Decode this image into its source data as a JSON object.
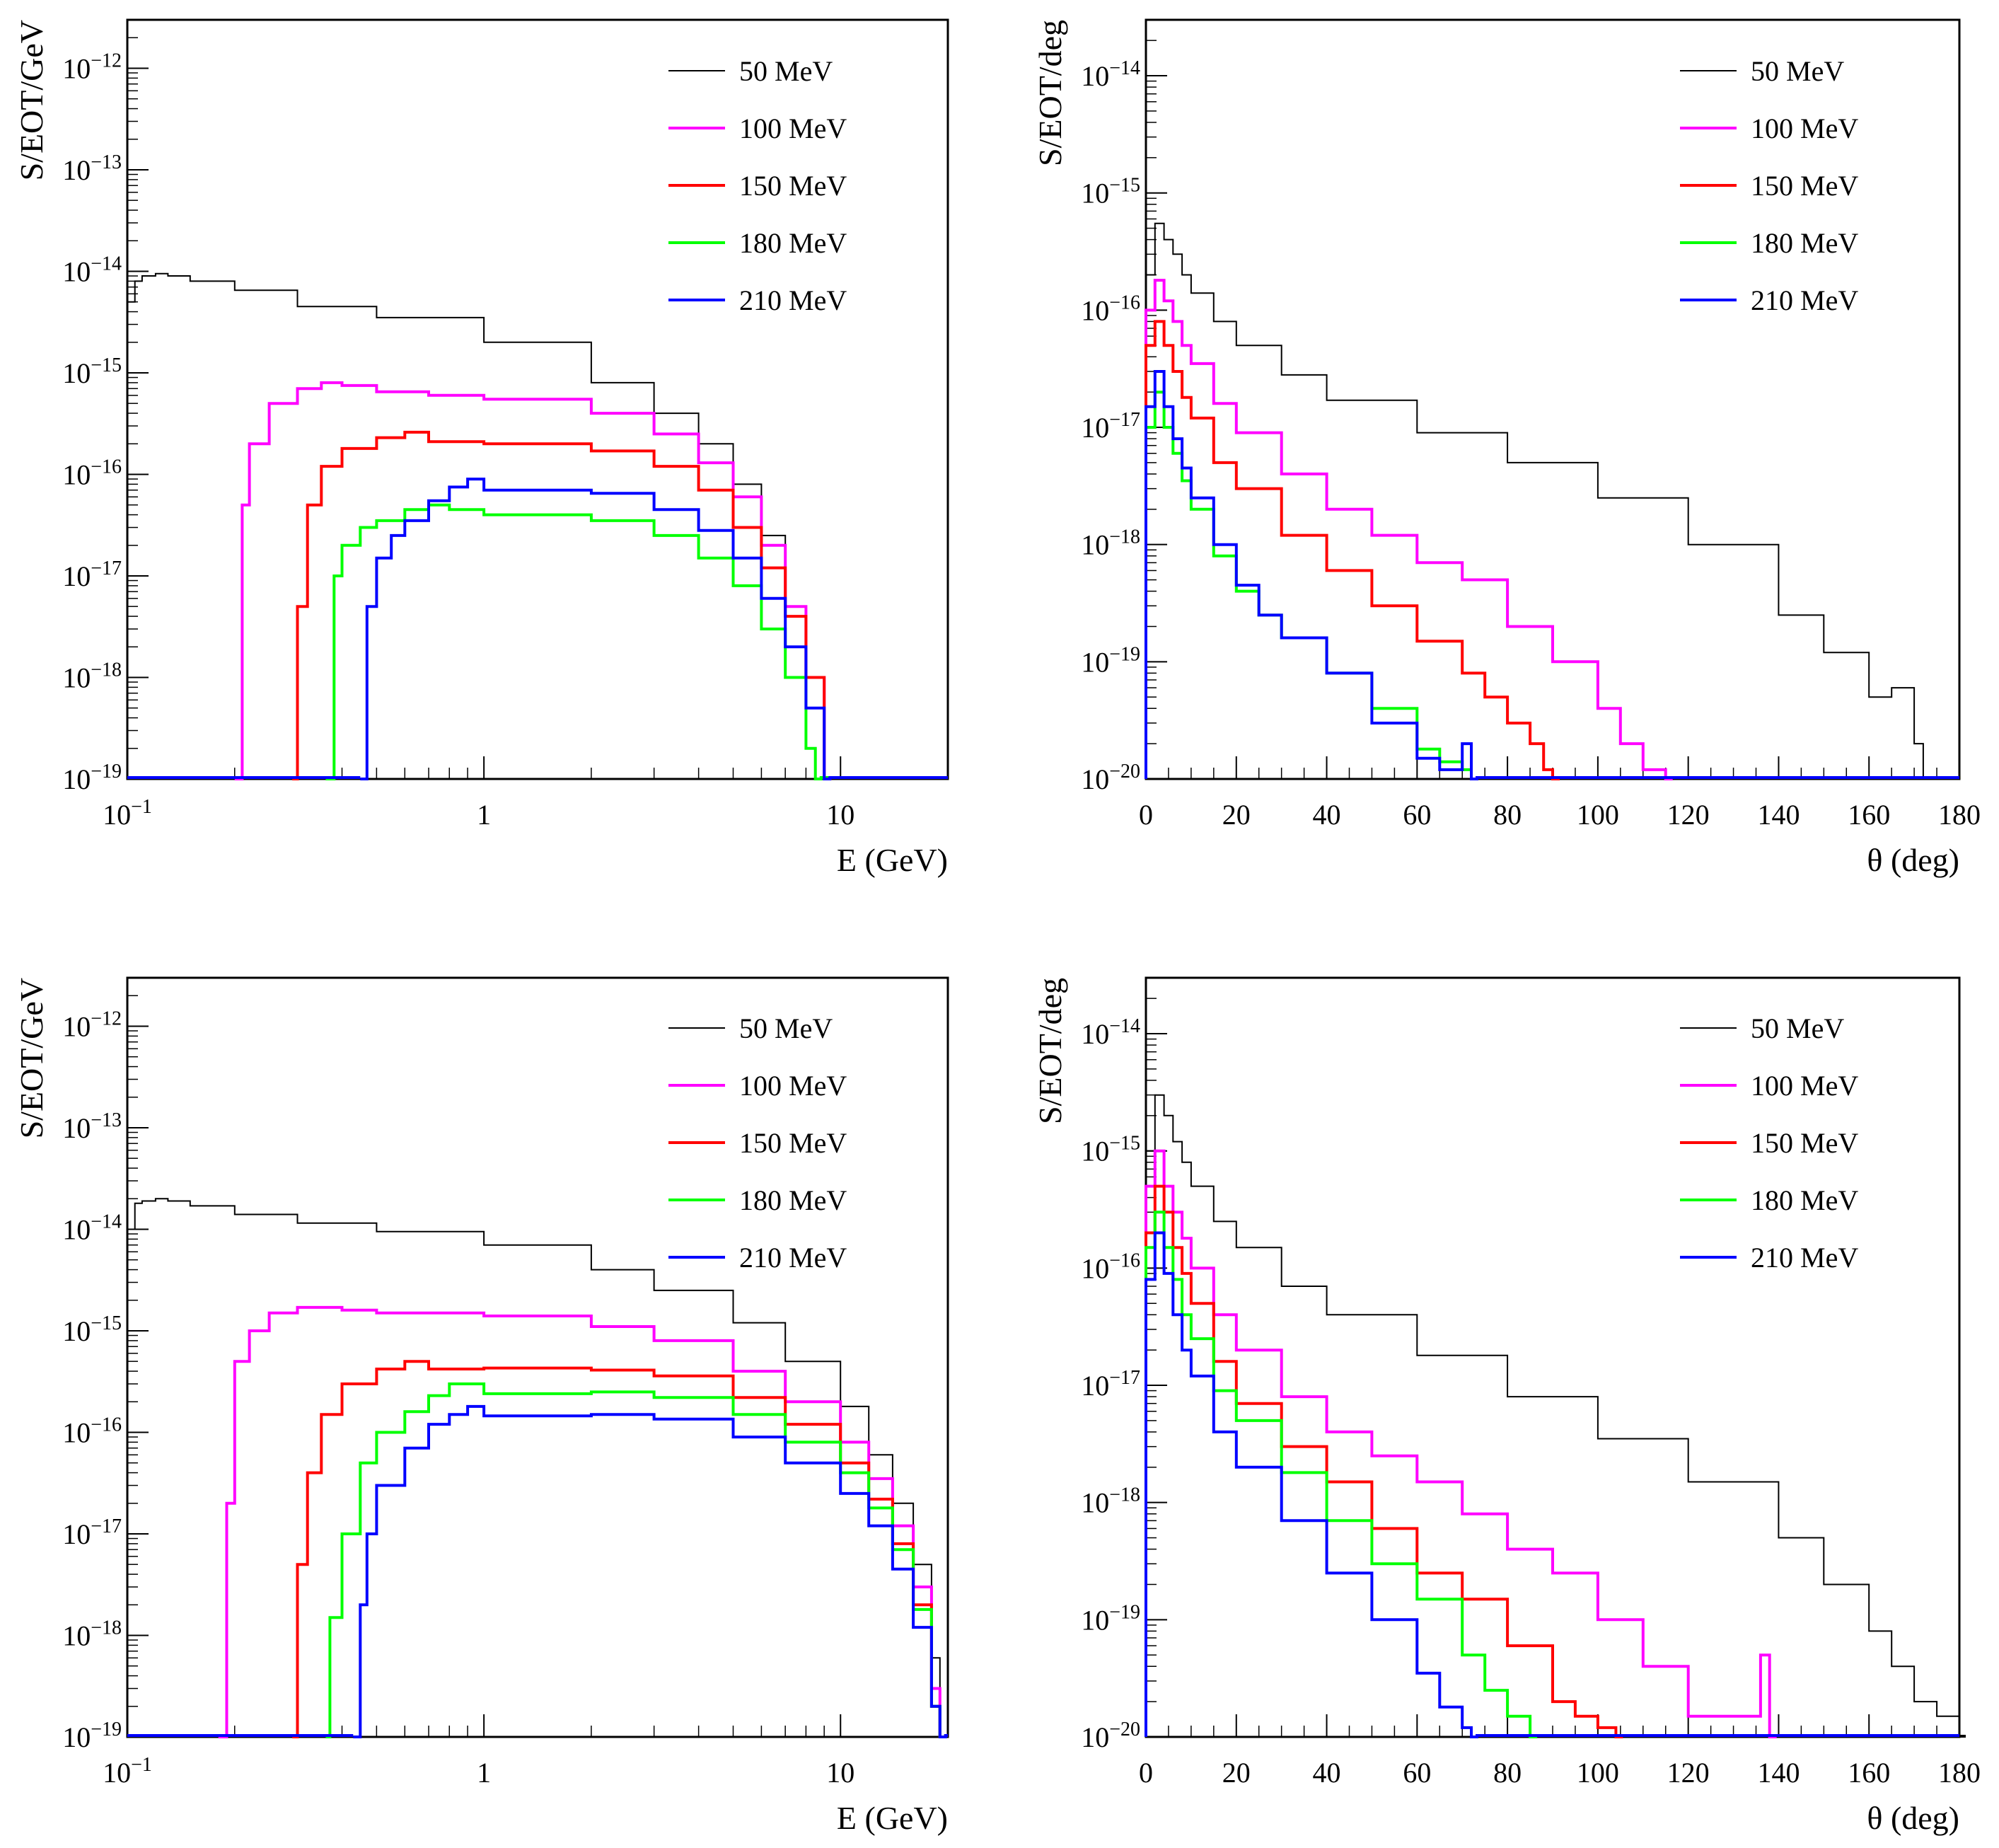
{
  "series_styles": [
    {
      "label": "50 MeV",
      "color": "#000000"
    },
    {
      "label": "100 MeV",
      "color": "#ff00ff"
    },
    {
      "label": "150 MeV",
      "color": "#ff0000"
    },
    {
      "label": "180 MeV",
      "color": "#00ff00"
    },
    {
      "label": "210 MeV",
      "color": "#0000ff"
    }
  ],
  "chart_data": [
    {
      "type": "line",
      "subtype": "step-histogram",
      "panel": "top-left",
      "title": "",
      "xlabel": "E (GeV)",
      "ylabel": "S/EOT/GeV",
      "xscale": "log",
      "yscale": "log",
      "xlim": [
        0.1,
        20
      ],
      "ylim": [
        1e-19,
        3e-12
      ],
      "x_ticks": [
        "10^-1",
        "1",
        "10"
      ],
      "y_ticks": [
        "10^-19",
        "10^-18",
        "10^-17",
        "10^-16",
        "10^-15",
        "10^-14",
        "10^-13",
        "10^-12"
      ],
      "legend_position": "top-right",
      "series": [
        {
          "name": "50 MeV",
          "x": [
            0.1,
            0.105,
            0.11,
            0.12,
            0.13,
            0.15,
            0.2,
            0.3,
            0.5,
            1,
            2,
            3,
            4,
            5,
            6,
            7,
            8,
            9
          ],
          "values": [
            5e-15,
            8e-15,
            9e-15,
            9.5e-15,
            9e-15,
            8e-15,
            6.5e-15,
            4.5e-15,
            3.5e-15,
            2e-15,
            8e-16,
            4e-16,
            2e-16,
            8e-17,
            2.5e-17,
            5e-18,
            1e-18,
            1e-19
          ]
        },
        {
          "name": "100 MeV",
          "x": [
            0.2,
            0.21,
            0.22,
            0.25,
            0.3,
            0.35,
            0.4,
            0.5,
            0.7,
            1,
            2,
            3,
            4,
            5,
            6,
            7,
            8,
            9
          ],
          "values": [
            1e-19,
            5e-17,
            2e-16,
            5e-16,
            7e-16,
            8e-16,
            7.5e-16,
            6.5e-16,
            6e-16,
            5.5e-16,
            4e-16,
            2.5e-16,
            1.3e-16,
            6e-17,
            2e-17,
            5e-18,
            1e-18,
            1e-19
          ]
        },
        {
          "name": "150 MeV",
          "x": [
            0.29,
            0.3,
            0.32,
            0.35,
            0.4,
            0.5,
            0.6,
            0.7,
            1,
            1.5,
            2,
            3,
            4,
            5,
            6,
            7,
            8,
            9
          ],
          "values": [
            1e-19,
            5e-18,
            5e-17,
            1.2e-16,
            1.8e-16,
            2.3e-16,
            2.6e-16,
            2.1e-16,
            2e-16,
            2e-16,
            1.7e-16,
            1.2e-16,
            7e-17,
            3e-17,
            1.2e-17,
            4e-18,
            1e-18,
            1e-19
          ]
        },
        {
          "name": "180 MeV",
          "x": [
            0.36,
            0.38,
            0.4,
            0.45,
            0.5,
            0.6,
            0.7,
            0.8,
            1,
            1.5,
            2,
            3,
            4,
            5,
            6,
            7,
            8,
            8.5
          ],
          "values": [
            1e-19,
            1e-17,
            2e-17,
            3e-17,
            3.5e-17,
            4.5e-17,
            5e-17,
            4.5e-17,
            4e-17,
            4e-17,
            3.5e-17,
            2.5e-17,
            1.5e-17,
            8e-18,
            3e-18,
            1e-18,
            2e-19,
            1e-19
          ]
        },
        {
          "name": "210 MeV",
          "x": [
            0.45,
            0.47,
            0.5,
            0.55,
            0.6,
            0.7,
            0.8,
            0.9,
            1,
            1.5,
            2,
            3,
            4,
            5,
            6,
            7,
            8,
            9
          ],
          "values": [
            1e-19,
            5e-18,
            1.5e-17,
            2.5e-17,
            3.5e-17,
            5.5e-17,
            7.5e-17,
            9e-17,
            7e-17,
            7e-17,
            6.5e-17,
            4.5e-17,
            2.8e-17,
            1.5e-17,
            6e-18,
            2e-18,
            5e-19,
            1e-19
          ]
        }
      ]
    },
    {
      "type": "line",
      "subtype": "step-histogram",
      "panel": "top-right",
      "title": "",
      "xlabel": "θ (deg)",
      "ylabel": "S/EOT/deg",
      "xscale": "linear",
      "yscale": "log",
      "xlim": [
        0,
        180
      ],
      "ylim": [
        1e-20,
        3e-14
      ],
      "x_ticks": [
        "0",
        "20",
        "40",
        "60",
        "80",
        "100",
        "120",
        "140",
        "160",
        "180"
      ],
      "y_ticks": [
        "10^-20",
        "10^-19",
        "10^-18",
        "10^-17",
        "10^-16",
        "10^-15",
        "10^-14"
      ],
      "legend_position": "top-right",
      "series": [
        {
          "name": "50 MeV",
          "x": [
            0,
            2,
            4,
            6,
            8,
            10,
            15,
            20,
            30,
            40,
            60,
            80,
            100,
            120,
            140,
            150,
            160,
            165,
            170,
            172
          ],
          "values": [
            2e-16,
            5.5e-16,
            4e-16,
            3e-16,
            2e-16,
            1.4e-16,
            8e-17,
            5e-17,
            2.8e-17,
            1.7e-17,
            9e-18,
            5e-18,
            2.5e-18,
            1e-18,
            2.5e-19,
            1.2e-19,
            5e-20,
            6e-20,
            2e-20,
            1e-20
          ]
        },
        {
          "name": "100 MeV",
          "x": [
            0,
            2,
            4,
            6,
            8,
            10,
            15,
            20,
            30,
            40,
            50,
            60,
            70,
            80,
            90,
            100,
            105,
            110,
            115
          ],
          "values": [
            1e-16,
            1.8e-16,
            1.2e-16,
            8e-17,
            5e-17,
            3.5e-17,
            1.6e-17,
            9e-18,
            4e-18,
            2e-18,
            1.2e-18,
            7e-19,
            5e-19,
            2e-19,
            1e-19,
            4e-20,
            2e-20,
            1.2e-20,
            1e-20
          ]
        },
        {
          "name": "150 MeV",
          "x": [
            0,
            2,
            4,
            6,
            8,
            10,
            15,
            20,
            30,
            40,
            50,
            60,
            70,
            75,
            80,
            85,
            88,
            90
          ],
          "values": [
            5e-17,
            8e-17,
            5e-17,
            3e-17,
            1.8e-17,
            1.2e-17,
            5e-18,
            3e-18,
            1.2e-18,
            6e-19,
            3e-19,
            1.5e-19,
            8e-20,
            5e-20,
            3e-20,
            2e-20,
            1.2e-20,
            1e-20
          ]
        },
        {
          "name": "180 MeV",
          "x": [
            0,
            2,
            4,
            6,
            8,
            10,
            15,
            20,
            25,
            30,
            40,
            50,
            60,
            65,
            70,
            72
          ],
          "values": [
            1e-17,
            2e-17,
            1e-17,
            6e-18,
            3.5e-18,
            2e-18,
            8e-19,
            4e-19,
            2.5e-19,
            1.6e-19,
            8e-20,
            4e-20,
            1.8e-20,
            1.4e-20,
            1.2e-20,
            1e-20
          ]
        },
        {
          "name": "210 MeV",
          "x": [
            0,
            2,
            4,
            6,
            8,
            10,
            15,
            20,
            25,
            30,
            40,
            50,
            60,
            65,
            70,
            72
          ],
          "values": [
            1.5e-17,
            3e-17,
            1.5e-17,
            8e-18,
            4.5e-18,
            2.5e-18,
            1e-18,
            4.5e-19,
            2.5e-19,
            1.6e-19,
            8e-20,
            3e-20,
            1.5e-20,
            1.2e-20,
            2e-20,
            1e-20
          ]
        }
      ]
    },
    {
      "type": "line",
      "subtype": "step-histogram",
      "panel": "bottom-left",
      "title": "",
      "xlabel": "E (GeV)",
      "ylabel": "S/EOT/GeV",
      "xscale": "log",
      "yscale": "log",
      "xlim": [
        0.1,
        20
      ],
      "ylim": [
        1e-19,
        3e-12
      ],
      "x_ticks": [
        "10^-1",
        "1",
        "10"
      ],
      "y_ticks": [
        "10^-19",
        "10^-18",
        "10^-17",
        "10^-16",
        "10^-15",
        "10^-14",
        "10^-13",
        "10^-12"
      ],
      "legend_position": "top-right",
      "series": [
        {
          "name": "50 MeV",
          "x": [
            0.1,
            0.105,
            0.11,
            0.12,
            0.13,
            0.15,
            0.2,
            0.3,
            0.5,
            1,
            2,
            3,
            5,
            7,
            10,
            12,
            14,
            16,
            18,
            19
          ],
          "values": [
            1e-14,
            1.8e-14,
            1.9e-14,
            2e-14,
            1.9e-14,
            1.7e-14,
            1.4e-14,
            1.15e-14,
            9.5e-15,
            7e-15,
            4e-15,
            2.5e-15,
            1.2e-15,
            5e-16,
            1.8e-16,
            6e-17,
            2e-17,
            5e-18,
            6e-19,
            1e-19
          ]
        },
        {
          "name": "100 MeV",
          "x": [
            0.18,
            0.19,
            0.2,
            0.22,
            0.25,
            0.3,
            0.4,
            0.5,
            1,
            2,
            3,
            5,
            7,
            10,
            12,
            14,
            16,
            18,
            19
          ],
          "values": [
            1e-19,
            2e-17,
            5e-16,
            1e-15,
            1.5e-15,
            1.7e-15,
            1.6e-15,
            1.5e-15,
            1.4e-15,
            1.1e-15,
            8e-16,
            4e-16,
            2e-16,
            8e-17,
            3.5e-17,
            1.2e-17,
            3e-18,
            3e-19,
            1e-19
          ]
        },
        {
          "name": "150 MeV",
          "x": [
            0.29,
            0.3,
            0.32,
            0.35,
            0.4,
            0.5,
            0.6,
            0.7,
            1,
            2,
            3,
            5,
            7,
            10,
            12,
            14,
            16,
            18,
            19
          ],
          "values": [
            1e-19,
            5e-18,
            4e-17,
            1.5e-16,
            3e-16,
            4.2e-16,
            5e-16,
            4.2e-16,
            4.3e-16,
            4.1e-16,
            3.6e-16,
            2.2e-16,
            1.2e-16,
            5e-17,
            2.2e-17,
            8e-18,
            2e-18,
            2e-19,
            1e-19
          ]
        },
        {
          "name": "180 MeV",
          "x": [
            0.36,
            0.37,
            0.4,
            0.45,
            0.5,
            0.6,
            0.7,
            0.8,
            1,
            2,
            3,
            5,
            7,
            10,
            12,
            14,
            16,
            18,
            19
          ],
          "values": [
            1e-19,
            1.5e-18,
            1e-17,
            5e-17,
            1e-16,
            1.6e-16,
            2.3e-16,
            3e-16,
            2.4e-16,
            2.5e-16,
            2.2e-16,
            1.5e-16,
            8e-17,
            4e-17,
            1.8e-17,
            7e-18,
            1.8e-18,
            2e-19,
            1e-19
          ]
        },
        {
          "name": "210 MeV",
          "x": [
            0.43,
            0.45,
            0.47,
            0.5,
            0.6,
            0.7,
            0.8,
            0.9,
            1,
            2,
            3,
            5,
            7,
            10,
            12,
            14,
            16,
            18,
            19
          ],
          "values": [
            1e-19,
            2e-18,
            1e-17,
            3e-17,
            7e-17,
            1.2e-16,
            1.5e-16,
            1.8e-16,
            1.45e-16,
            1.5e-16,
            1.35e-16,
            9e-17,
            5e-17,
            2.5e-17,
            1.2e-17,
            4.5e-18,
            1.2e-18,
            2e-19,
            1e-19
          ]
        }
      ]
    },
    {
      "type": "line",
      "subtype": "step-histogram",
      "panel": "bottom-right",
      "title": "",
      "xlabel": "θ (deg)",
      "ylabel": "S/EOT/deg",
      "xscale": "linear",
      "yscale": "log",
      "xlim": [
        0,
        180
      ],
      "ylim": [
        1e-20,
        3e-14
      ],
      "x_ticks": [
        "0",
        "20",
        "40",
        "60",
        "80",
        "100",
        "120",
        "140",
        "160",
        "180"
      ],
      "y_ticks": [
        "10^-20",
        "10^-19",
        "10^-18",
        "10^-17",
        "10^-16",
        "10^-15",
        "10^-14"
      ],
      "legend_position": "top-right",
      "series": [
        {
          "name": "50 MeV",
          "x": [
            0,
            2,
            4,
            6,
            8,
            10,
            15,
            20,
            30,
            40,
            60,
            80,
            100,
            120,
            140,
            150,
            160,
            165,
            170,
            175,
            180
          ],
          "values": [
            1e-15,
            3e-15,
            2e-15,
            1.2e-15,
            8e-16,
            5e-16,
            2.5e-16,
            1.5e-16,
            7e-17,
            4e-17,
            1.8e-17,
            8e-18,
            3.5e-18,
            1.5e-18,
            5e-19,
            2e-19,
            8e-20,
            4e-20,
            2e-20,
            1.5e-20,
            1e-20
          ]
        },
        {
          "name": "100 MeV",
          "x": [
            0,
            2,
            4,
            6,
            8,
            10,
            15,
            20,
            30,
            40,
            50,
            60,
            70,
            80,
            90,
            100,
            110,
            120,
            130,
            136,
            138
          ],
          "values": [
            5e-16,
            1e-15,
            5e-16,
            3e-16,
            1.8e-16,
            1e-16,
            4e-17,
            2e-17,
            8e-18,
            4e-18,
            2.5e-18,
            1.5e-18,
            8e-19,
            4e-19,
            2.5e-19,
            1e-19,
            4e-20,
            1.5e-20,
            1.5e-20,
            5e-20,
            1e-20
          ]
        },
        {
          "name": "150 MeV",
          "x": [
            0,
            2,
            4,
            6,
            8,
            10,
            15,
            20,
            30,
            40,
            50,
            60,
            70,
            80,
            90,
            95,
            100,
            104
          ],
          "values": [
            2e-16,
            5e-16,
            3e-16,
            1.5e-16,
            9e-17,
            5e-17,
            1.6e-17,
            7e-18,
            3e-18,
            1.5e-18,
            6e-19,
            2.5e-19,
            1.5e-19,
            6e-20,
            2e-20,
            1.5e-20,
            1.2e-20,
            1e-20
          ]
        },
        {
          "name": "180 MeV",
          "x": [
            0,
            2,
            4,
            6,
            8,
            10,
            15,
            20,
            30,
            40,
            50,
            60,
            70,
            75,
            80,
            85
          ],
          "values": [
            1.5e-16,
            3e-16,
            1.5e-16,
            8e-17,
            4e-17,
            2.5e-17,
            9e-18,
            5e-18,
            1.8e-18,
            7e-19,
            3e-19,
            1.5e-19,
            5e-20,
            2.5e-20,
            1.5e-20,
            1e-20
          ]
        },
        {
          "name": "210 MeV",
          "x": [
            0,
            2,
            4,
            6,
            8,
            10,
            15,
            20,
            30,
            40,
            50,
            60,
            65,
            70,
            72
          ],
          "values": [
            8e-17,
            2e-16,
            9e-17,
            4e-17,
            2e-17,
            1.2e-17,
            4e-18,
            2e-18,
            7e-19,
            2.5e-19,
            1e-19,
            3.5e-20,
            1.8e-20,
            1.2e-20,
            1e-20
          ]
        }
      ]
    }
  ]
}
